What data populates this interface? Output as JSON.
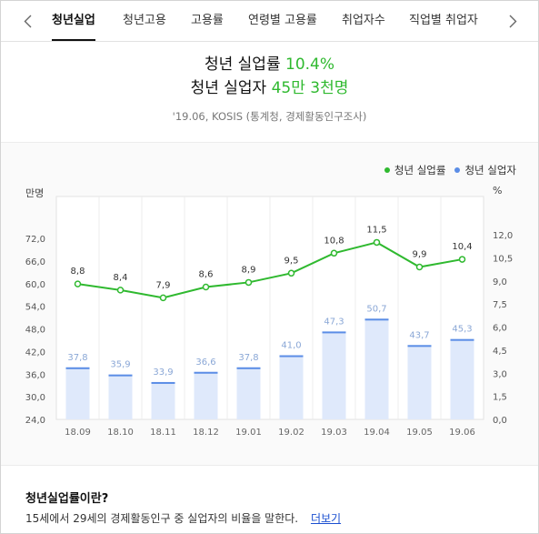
{
  "tabs": [
    "청년실업",
    "청년고용",
    "고용률",
    "연령별 고용률",
    "취업자수",
    "직업별 취업자"
  ],
  "active_tab": 0,
  "headline": {
    "rate_label": "청년 실업률",
    "rate_value": "10.4%",
    "count_label": "청년 실업자",
    "count_value": "45만 3천명",
    "source": "'19.06, KOSIS (통계청, 경제활동인구조사)"
  },
  "legend": {
    "rate": "청년 실업률",
    "count": "청년 실업자"
  },
  "colors": {
    "rate_line": "#2fb92f",
    "bar_fill": "#dfe9fb",
    "bar_top": "#5b8de6",
    "bar_label": "#8aa7d6",
    "legend_count_dot": "#5b8de6"
  },
  "chart_data": {
    "type": "bar",
    "categories": [
      "18.09",
      "18.10",
      "18.11",
      "18.12",
      "19.01",
      "19.02",
      "19.03",
      "19.04",
      "19.05",
      "19.06"
    ],
    "series": [
      {
        "name": "청년 실업자",
        "type": "bar",
        "axis": "left",
        "values": [
          37.8,
          35.9,
          33.9,
          36.6,
          37.8,
          41.0,
          47.3,
          50.7,
          43.7,
          45.3
        ]
      },
      {
        "name": "청년 실업률",
        "type": "line",
        "axis": "right",
        "values": [
          8.8,
          8.4,
          7.9,
          8.6,
          8.9,
          9.5,
          10.8,
          11.5,
          9.9,
          10.4
        ]
      }
    ],
    "bar_labels": [
      "37,8",
      "35,9",
      "33,9",
      "36,6",
      "37,8",
      "41,0",
      "47,3",
      "50,7",
      "43,7",
      "45,3"
    ],
    "line_labels": [
      "8,8",
      "8,4",
      "7,9",
      "8,6",
      "8,9",
      "9,5",
      "10,8",
      "11,5",
      "9,9",
      "10,4"
    ],
    "left_axis": {
      "label": "만명",
      "ticks": [
        "24,0",
        "30,0",
        "36,0",
        "42,0",
        "48,0",
        "54,0",
        "60,0",
        "66,0",
        "72,0"
      ],
      "ylim": [
        24,
        72
      ]
    },
    "right_axis": {
      "label": "%",
      "ticks": [
        "0,0",
        "1,5",
        "3,0",
        "4,5",
        "6,0",
        "7,5",
        "9,0",
        "10,5",
        "12,0"
      ],
      "ylim": [
        0,
        12
      ]
    },
    "grid": "vertical",
    "legend_position": "top-right"
  },
  "definition": {
    "title": "청년실업률이란?",
    "text": "15세에서 29세의 경제활동인구 중 실업자의 비율을 말한다.",
    "link": "더보기"
  }
}
